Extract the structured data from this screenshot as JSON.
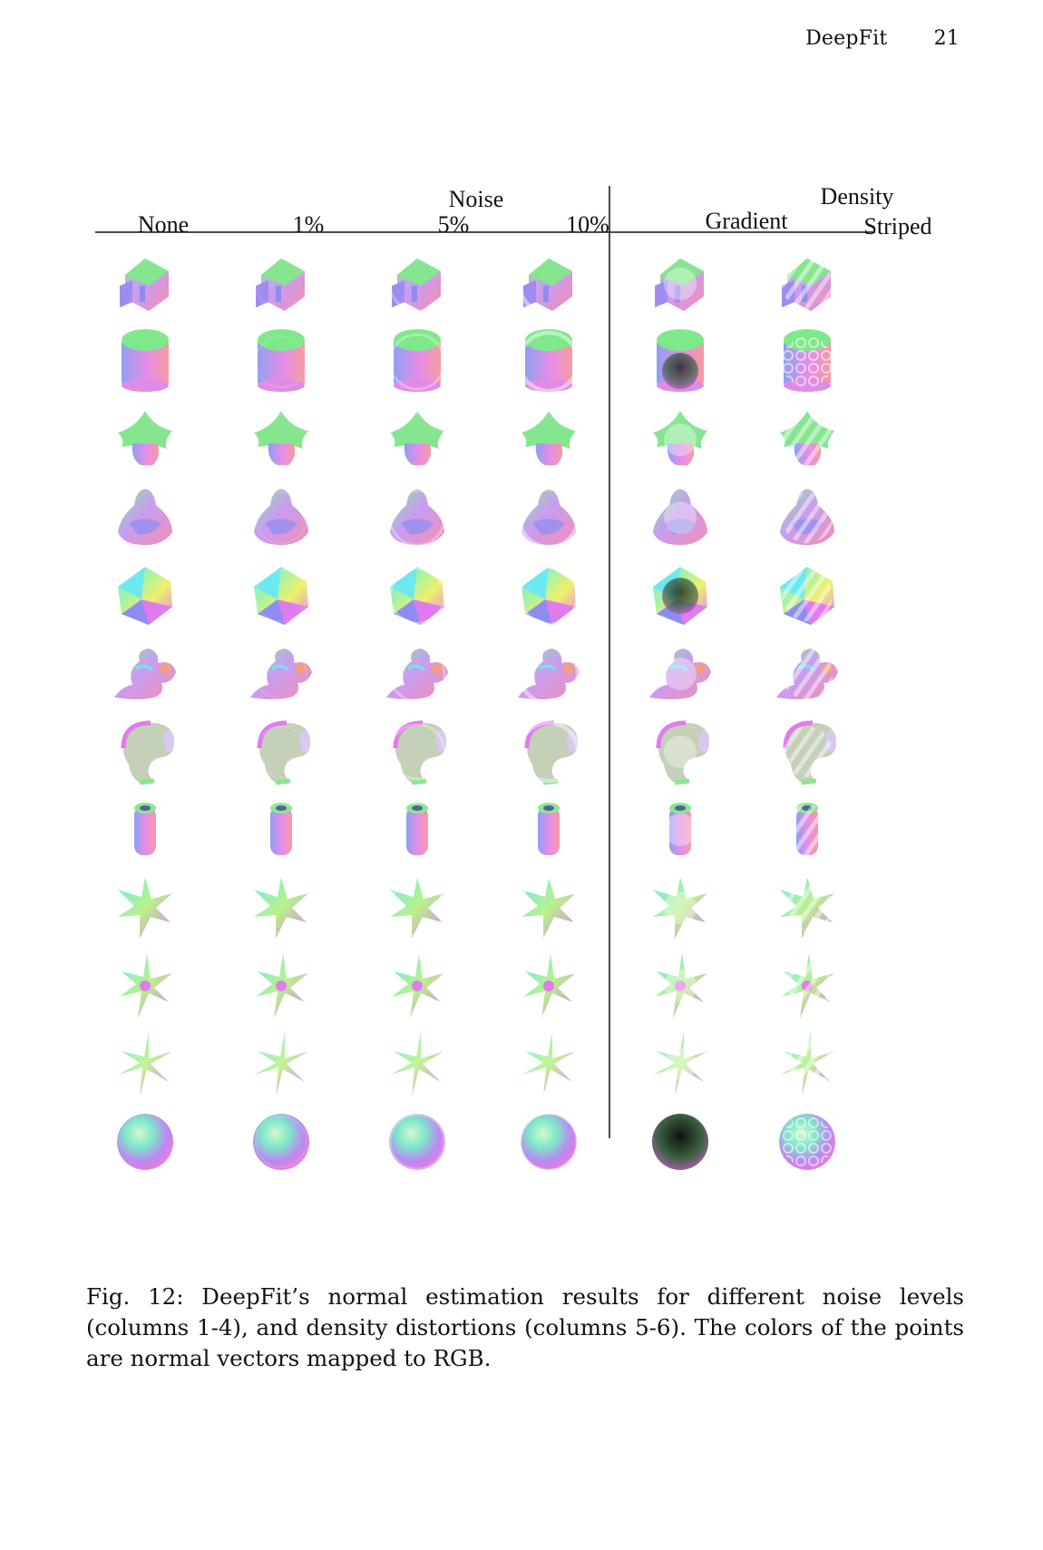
{
  "header": {
    "title": "DeepFit",
    "page_number": "21"
  },
  "figure": {
    "groups": {
      "noise": "Noise",
      "density": "Density"
    },
    "columns": [
      "None",
      "1%",
      "5%",
      "10%",
      "Gradient",
      "Striped"
    ],
    "shapes": [
      {
        "name": "boxunion",
        "kind": "box"
      },
      {
        "name": "cylinder",
        "kind": "cylinder"
      },
      {
        "name": "fandisk-like",
        "kind": "flare"
      },
      {
        "name": "netsuke-like",
        "kind": "blob"
      },
      {
        "name": "icosahedron",
        "kind": "poly"
      },
      {
        "name": "dragon-like",
        "kind": "dragon"
      },
      {
        "name": "bent-tube",
        "kind": "bent"
      },
      {
        "name": "pipe",
        "kind": "pipe"
      },
      {
        "name": "star-smooth",
        "kind": "star1"
      },
      {
        "name": "star-sharp",
        "kind": "star2"
      },
      {
        "name": "star-thin",
        "kind": "star3"
      },
      {
        "name": "sphere",
        "kind": "sphere"
      }
    ],
    "colors": {
      "green": "#7ee88a",
      "magenta": "#e07bf0",
      "blue": "#8e8cf0",
      "red": "#f08a8a",
      "cyan": "#6ee8f0",
      "yellow": "#f0f06e"
    }
  },
  "caption": "Fig. 12: DeepFit’s normal estimation results for different noise levels (columns 1-4), and density distortions (columns 5-6). The colors of the points are normal vectors mapped to RGB."
}
